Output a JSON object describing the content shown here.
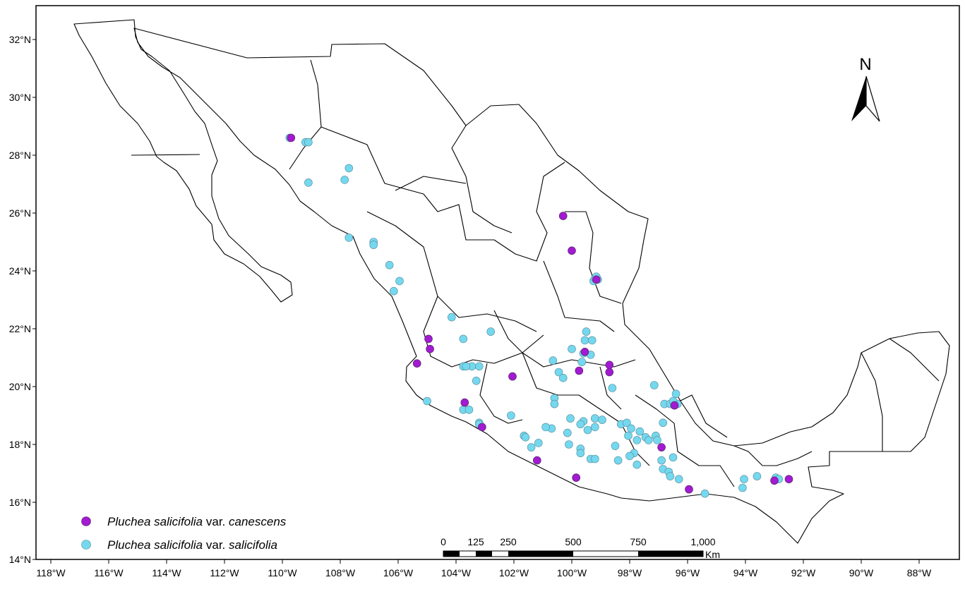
{
  "map": {
    "lat_ticks": [
      "32°N",
      "30°N",
      "28°N",
      "26°N",
      "24°N",
      "22°N",
      "20°N",
      "18°N",
      "16°N",
      "14°N"
    ],
    "lon_ticks": [
      "118°W",
      "116°W",
      "114°W",
      "112°W",
      "110°W",
      "108°W",
      "106°W",
      "104°W",
      "102°W",
      "100°W",
      "98°W",
      "96°W",
      "94°W",
      "92°W",
      "90°W",
      "88°W"
    ],
    "north_label": "N",
    "scale": {
      "labels": [
        "0",
        "125",
        "250",
        "500",
        "750",
        "1,000"
      ],
      "unit": "Km"
    },
    "legend": [
      {
        "genus_species": "Pluchea salicifolia",
        "rank": "var.",
        "variety": "canescens",
        "color": "#a21ad1"
      },
      {
        "genus_species": "Pluchea salicifolia",
        "rank": "var.",
        "variety": "salicifolia",
        "color": "#74d8ee"
      }
    ],
    "colors": {
      "canescens": "#a21ad1",
      "salicifolia": "#74d8ee",
      "outline": "#000000"
    },
    "points_salicifolia": [
      [
        -109.75,
        28.6
      ],
      [
        -109.2,
        28.45
      ],
      [
        -109.1,
        28.45
      ],
      [
        -107.7,
        27.55
      ],
      [
        -107.85,
        27.15
      ],
      [
        -109.1,
        27.05
      ],
      [
        -107.7,
        25.15
      ],
      [
        -106.85,
        25.0
      ],
      [
        -106.85,
        24.9
      ],
      [
        -106.3,
        24.2
      ],
      [
        -105.95,
        23.65
      ],
      [
        -106.15,
        23.3
      ],
      [
        -104.15,
        22.4
      ],
      [
        -103.75,
        21.65
      ],
      [
        -102.8,
        21.9
      ],
      [
        -103.75,
        20.7
      ],
      [
        -103.45,
        20.7
      ],
      [
        -103.2,
        20.7
      ],
      [
        -103.65,
        20.7
      ],
      [
        -103.3,
        20.2
      ],
      [
        -105.0,
        19.5
      ],
      [
        -103.75,
        19.2
      ],
      [
        -103.55,
        19.2
      ],
      [
        -103.2,
        18.75
      ],
      [
        -103.2,
        18.7
      ],
      [
        -102.1,
        19.0
      ],
      [
        -100.0,
        21.3
      ],
      [
        -99.5,
        21.9
      ],
      [
        -99.55,
        21.6
      ],
      [
        -99.3,
        21.6
      ],
      [
        -99.6,
        21.15
      ],
      [
        -99.65,
        20.85
      ],
      [
        -99.35,
        21.1
      ],
      [
        -100.65,
        20.9
      ],
      [
        -100.45,
        20.5
      ],
      [
        -100.3,
        20.3
      ],
      [
        -100.6,
        19.6
      ],
      [
        -100.6,
        19.4
      ],
      [
        -100.05,
        18.9
      ],
      [
        -99.6,
        18.8
      ],
      [
        -99.2,
        18.9
      ],
      [
        -98.95,
        18.85
      ],
      [
        -99.2,
        18.6
      ],
      [
        -99.45,
        18.5
      ],
      [
        -99.7,
        18.7
      ],
      [
        -100.15,
        18.4
      ],
      [
        -100.7,
        18.55
      ],
      [
        -100.9,
        18.6
      ],
      [
        -101.65,
        18.3
      ],
      [
        -101.6,
        18.25
      ],
      [
        -101.4,
        17.9
      ],
      [
        -101.15,
        18.05
      ],
      [
        -100.1,
        18.0
      ],
      [
        -99.7,
        17.85
      ],
      [
        -99.7,
        17.7
      ],
      [
        -99.35,
        17.5
      ],
      [
        -99.2,
        17.5
      ],
      [
        -98.5,
        17.95
      ],
      [
        -98.3,
        18.7
      ],
      [
        -98.1,
        18.75
      ],
      [
        -97.95,
        18.55
      ],
      [
        -97.65,
        18.45
      ],
      [
        -97.75,
        18.15
      ],
      [
        -97.45,
        18.25
      ],
      [
        -97.35,
        18.15
      ],
      [
        -97.1,
        18.3
      ],
      [
        -97.05,
        18.15
      ],
      [
        -98.05,
        18.3
      ],
      [
        -97.85,
        17.7
      ],
      [
        -98.0,
        17.6
      ],
      [
        -98.4,
        17.45
      ],
      [
        -97.75,
        17.3
      ],
      [
        -96.9,
        17.45
      ],
      [
        -96.85,
        17.15
      ],
      [
        -96.65,
        17.05
      ],
      [
        -96.6,
        16.9
      ],
      [
        -96.3,
        16.8
      ],
      [
        -95.4,
        16.3
      ],
      [
        -96.8,
        19.4
      ],
      [
        -96.6,
        19.4
      ],
      [
        -96.45,
        19.35
      ],
      [
        -96.35,
        19.4
      ],
      [
        -96.4,
        19.75
      ],
      [
        -96.5,
        19.5
      ],
      [
        -96.85,
        18.75
      ],
      [
        -96.5,
        17.55
      ],
      [
        -97.15,
        20.05
      ],
      [
        -98.6,
        19.95
      ],
      [
        -94.05,
        16.8
      ],
      [
        -94.1,
        16.5
      ],
      [
        -93.6,
        16.9
      ],
      [
        -92.95,
        16.85
      ],
      [
        -92.85,
        16.8
      ],
      [
        -99.25,
        23.65
      ],
      [
        -99.2,
        23.75
      ],
      [
        -99.1,
        23.7
      ],
      [
        -99.15,
        23.8
      ]
    ],
    "points_canescens": [
      [
        -109.7,
        28.6
      ],
      [
        -100.3,
        25.9
      ],
      [
        -100.0,
        24.7
      ],
      [
        -99.15,
        23.7
      ],
      [
        -104.95,
        21.65
      ],
      [
        -104.9,
        21.3
      ],
      [
        -105.35,
        20.8
      ],
      [
        -99.55,
        21.2
      ],
      [
        -99.75,
        20.55
      ],
      [
        -98.7,
        20.75
      ],
      [
        -98.7,
        20.5
      ],
      [
        -102.05,
        20.35
      ],
      [
        -103.7,
        19.45
      ],
      [
        -103.1,
        18.6
      ],
      [
        -101.2,
        17.45
      ],
      [
        -99.85,
        16.85
      ],
      [
        -96.9,
        17.9
      ],
      [
        -96.45,
        19.35
      ],
      [
        -95.95,
        16.45
      ],
      [
        -93.0,
        16.75
      ],
      [
        -92.5,
        16.8
      ]
    ]
  }
}
